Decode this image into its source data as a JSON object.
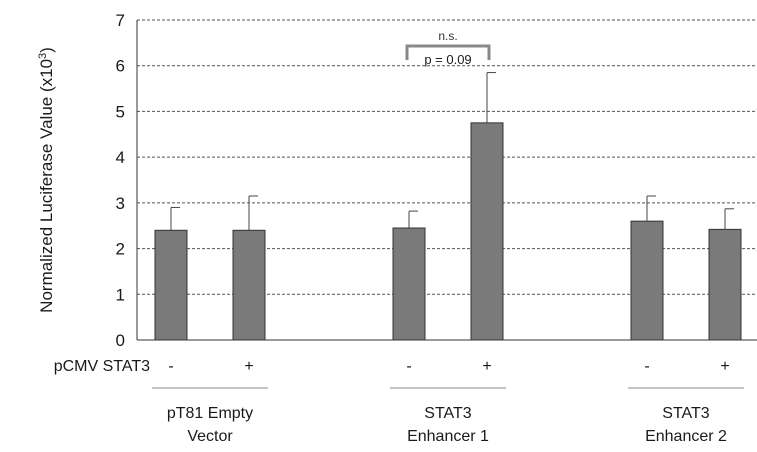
{
  "chart_data": {
    "type": "bar",
    "ylabel": "Normalized Luciferase Value (x10",
    "ylabel_sup": "3",
    "ylabel_close": ")",
    "ylim": [
      0,
      7
    ],
    "yticks": [
      0,
      1,
      2,
      3,
      4,
      5,
      6,
      7
    ],
    "grid": true,
    "legend": "none",
    "row_label": "pCMV STAT3",
    "groups": [
      {
        "label_lines": [
          "pT81 Empty",
          "Vector"
        ]
      },
      {
        "label_lines": [
          "STAT3",
          "Enhancer 1"
        ]
      },
      {
        "label_lines": [
          "STAT3",
          "Enhancer 2"
        ]
      }
    ],
    "bars": [
      {
        "group": 0,
        "condition": "-",
        "value": 2.4,
        "error": 0.5
      },
      {
        "group": 0,
        "condition": "+",
        "value": 2.4,
        "error": 0.75
      },
      {
        "group": 1,
        "condition": "-",
        "value": 2.45,
        "error": 0.37
      },
      {
        "group": 1,
        "condition": "+",
        "value": 4.75,
        "error": 1.1
      },
      {
        "group": 2,
        "condition": "-",
        "value": 2.6,
        "error": 0.55
      },
      {
        "group": 2,
        "condition": "+",
        "value": 2.42,
        "error": 0.45
      }
    ],
    "annotation": {
      "group": 1,
      "text_top": "n.s.",
      "text_bottom": "p = 0.09"
    },
    "colors": {
      "bar": "#7a7a7a",
      "bar_edge": "#333333",
      "grid": "#555555"
    }
  }
}
